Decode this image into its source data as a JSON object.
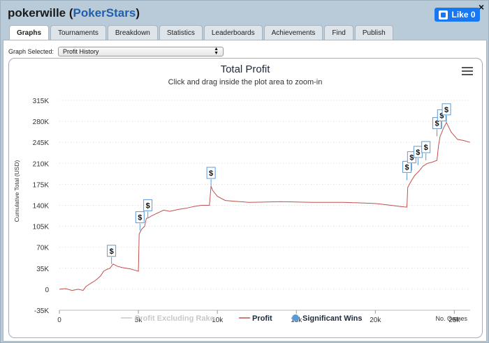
{
  "header": {
    "username": "pokerwille",
    "site": "PokerStars",
    "like_label": "Like 0",
    "close_glyph": "×"
  },
  "tabs": [
    {
      "label": "Graphs",
      "active": true
    },
    {
      "label": "Tournaments"
    },
    {
      "label": "Breakdown"
    },
    {
      "label": "Statistics"
    },
    {
      "label": "Leaderboards"
    },
    {
      "label": "Achievements"
    },
    {
      "label": "Find"
    },
    {
      "label": "Publish"
    }
  ],
  "graph_select": {
    "label": "Graph Selected:",
    "value": "Profit History"
  },
  "colors": {
    "profit_line": "#c0504d",
    "rake_line": "#c8c8c8",
    "significant_wins": "#5b9bd5",
    "title": "#1e2a3a"
  },
  "chart_data": {
    "type": "line",
    "title": "Total Profit",
    "subtitle": "Click and drag inside the plot area to zoom-in",
    "ylabel": "Cumulative Total (USD)",
    "xlabel": "No. Games",
    "ylim": [
      -35000,
      315000
    ],
    "xlim": [
      0,
      26000
    ],
    "y_ticks": [
      "315K",
      "280K",
      "245K",
      "210K",
      "175K",
      "140K",
      "105K",
      "70K",
      "35K",
      "0",
      "-35K"
    ],
    "y_tick_values": [
      315000,
      280000,
      245000,
      210000,
      175000,
      140000,
      105000,
      70000,
      35000,
      0,
      -35000
    ],
    "x_ticks": [
      "0",
      "5k",
      "10k",
      "15k",
      "20k",
      "25k"
    ],
    "x_tick_values": [
      0,
      5000,
      10000,
      15000,
      20000,
      25000
    ],
    "legend": [
      "Profit Excluding Rake",
      "Profit",
      "Significant Wins"
    ],
    "legend_placement": "bottom",
    "series": [
      {
        "name": "Profit",
        "x": [
          0,
          400,
          800,
          1200,
          1500,
          1700,
          2000,
          2300,
          2600,
          2800,
          3000,
          3200,
          3400,
          3700,
          4000,
          4500,
          5000,
          5050,
          5200,
          5400,
          5500,
          5700,
          5800,
          6200,
          6600,
          7000,
          7500,
          8000,
          8500,
          9000,
          9500,
          9600,
          9700,
          10000,
          10500,
          12000,
          14000,
          16000,
          18000,
          20000,
          21000,
          21600,
          22000,
          22050,
          22300,
          22500,
          22800,
          23000,
          23300,
          23600,
          23900,
          24000,
          24100,
          24300,
          24500,
          24800,
          25200,
          25600,
          26000
        ],
        "values": [
          0,
          1000,
          -2000,
          0,
          -2000,
          5000,
          10000,
          15000,
          22000,
          30000,
          33000,
          35000,
          42000,
          38000,
          36000,
          34000,
          30000,
          92000,
          100000,
          105000,
          118000,
          120000,
          122000,
          127000,
          132000,
          130000,
          133000,
          135000,
          138000,
          140000,
          140000,
          172000,
          165000,
          155000,
          148000,
          145000,
          146000,
          145000,
          145000,
          143000,
          140000,
          138000,
          137000,
          170000,
          182000,
          190000,
          198000,
          205000,
          210000,
          212000,
          215000,
          240000,
          255000,
          268000,
          278000,
          262000,
          250000,
          248000,
          245000
        ]
      }
    ],
    "significant_wins": [
      {
        "x": 3300,
        "y": 42000
      },
      {
        "x": 5100,
        "y": 98000
      },
      {
        "x": 5600,
        "y": 118000
      },
      {
        "x": 9600,
        "y": 172000
      },
      {
        "x": 22000,
        "y": 182000
      },
      {
        "x": 22300,
        "y": 198000
      },
      {
        "x": 22700,
        "y": 207000
      },
      {
        "x": 23200,
        "y": 215000
      },
      {
        "x": 23900,
        "y": 255000
      },
      {
        "x": 24200,
        "y": 268000
      },
      {
        "x": 24500,
        "y": 278000
      }
    ],
    "win_marker_label": "$"
  }
}
